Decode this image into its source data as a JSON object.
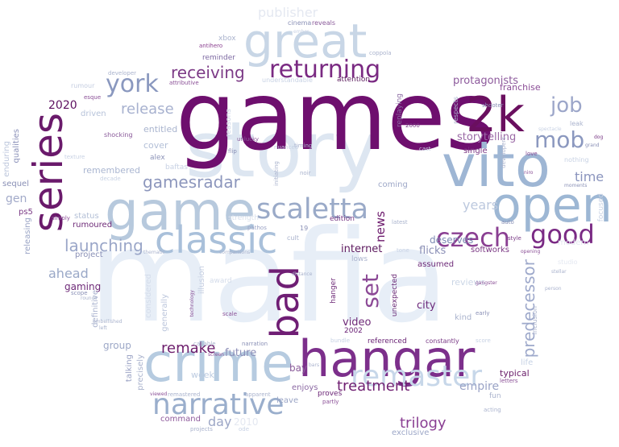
{
  "words": [
    {
      "text": "mafia",
      "color": "#e7eef7"
    },
    {
      "text": "story",
      "color": "#dde6f1"
    },
    {
      "text": "games",
      "color": "#6e0f6e"
    },
    {
      "text": "hangar",
      "color": "#7c2f8b"
    },
    {
      "text": "2k",
      "color": "#6a0f5f"
    },
    {
      "text": "vito",
      "color": "#9eb6d4"
    },
    {
      "text": "open",
      "color": "#9db7d4"
    },
    {
      "text": "game",
      "color": "#b7c9dd"
    },
    {
      "text": "great",
      "color": "#c8d6e6"
    },
    {
      "text": "classic",
      "color": "#a9c0da"
    },
    {
      "text": "crime",
      "color": "#b6cbe0"
    },
    {
      "text": "series",
      "color": "#6a1a6b"
    },
    {
      "text": "bad",
      "color": "#6f1e74"
    },
    {
      "text": "returning",
      "color": "#7a2a82"
    },
    {
      "text": "scaletta",
      "color": "#9aaac8"
    },
    {
      "text": "york",
      "color": "#8a98bf"
    },
    {
      "text": "remaster",
      "color": "#c7d7e9"
    },
    {
      "text": "narrative",
      "color": "#9aaecc"
    },
    {
      "text": "good",
      "color": "#7a2a84"
    },
    {
      "text": "czech",
      "color": "#8a3f92"
    },
    {
      "text": "mob",
      "color": "#8b98bf"
    },
    {
      "text": "job",
      "color": "#9ca6c9"
    },
    {
      "text": "set",
      "color": "#8c4996"
    },
    {
      "text": "receiving",
      "color": "#7c3a86"
    },
    {
      "text": "gamesradar",
      "color": "#8c96bc"
    },
    {
      "text": "launching",
      "color": "#9aa6c8"
    },
    {
      "text": "release",
      "color": "#a7b1cf"
    },
    {
      "text": "remake",
      "color": "#6d1d6c"
    },
    {
      "text": "treatment",
      "color": "#702072"
    },
    {
      "text": "trilogy",
      "color": "#8a3f93"
    },
    {
      "text": "predecessor",
      "color": "#9ea9cb"
    },
    {
      "text": "2020",
      "color": "#5d1060"
    },
    {
      "text": "ahead",
      "color": "#9aa8c7"
    },
    {
      "text": "time",
      "color": "#8a94bd"
    },
    {
      "text": "years",
      "color": "#bcc8de"
    },
    {
      "text": "news",
      "color": "#6d1a6d"
    },
    {
      "text": "storytelling",
      "color": "#9b6aa6"
    },
    {
      "text": "protagonists",
      "color": "#8d5a9c"
    },
    {
      "text": "publisher",
      "color": "#e4e8f1"
    },
    {
      "text": "day",
      "color": "#9ca6c6"
    },
    {
      "text": "future",
      "color": "#8d8fb8"
    },
    {
      "text": "empire",
      "color": "#9aa3c6"
    },
    {
      "text": "city",
      "color": "#6d2a7b"
    },
    {
      "text": "video",
      "color": "#6f2a78"
    },
    {
      "text": "internet",
      "color": "#5d1a5f"
    },
    {
      "text": "flicks",
      "color": "#8a8fb6"
    },
    {
      "text": "deserves",
      "color": "#7c8ab3"
    },
    {
      "text": "bay",
      "color": "#8a5b9a"
    },
    {
      "text": "gaming",
      "color": "#6e2a78"
    },
    {
      "text": "group",
      "color": "#9da8c7"
    },
    {
      "text": "gen",
      "color": "#a2aac9"
    },
    {
      "text": "week",
      "color": "#bccbe0"
    },
    {
      "text": "remembered",
      "color": "#aab6d1"
    },
    {
      "text": "franchise",
      "color": "#8a4c96"
    },
    {
      "text": "softworks",
      "color": "#7c3a85"
    },
    {
      "text": "typical",
      "color": "#6a1d6a"
    },
    {
      "text": "reviews",
      "color": "#cbd6e6"
    },
    {
      "text": "single",
      "color": "#7d3a86"
    },
    {
      "text": "command",
      "color": "#8e5a9c"
    },
    {
      "text": "enjoys",
      "color": "#8c6aa4"
    },
    {
      "text": "cover",
      "color": "#b3bfd7"
    },
    {
      "text": "entitled",
      "color": "#aab5cf"
    },
    {
      "text": "driven",
      "color": "#b7c3da"
    },
    {
      "text": "life",
      "color": "#c7d3e5"
    },
    {
      "text": "coming",
      "color": "#9ea8c8"
    },
    {
      "text": "status",
      "color": "#b3bfd6"
    },
    {
      "text": "rumoured",
      "color": "#6e2b78"
    },
    {
      "text": "ps5",
      "color": "#7a3a85"
    },
    {
      "text": "project",
      "color": "#8a90b6"
    },
    {
      "text": "definitive",
      "color": "#aab3cf"
    },
    {
      "text": "exclusive",
      "color": "#9ea8c8"
    },
    {
      "text": "leave",
      "color": "#9aa4c5"
    },
    {
      "text": "assumed",
      "color": "#6d2a78"
    },
    {
      "text": "referenced",
      "color": "#6a2475"
    },
    {
      "text": "kind",
      "color": "#aab3cd"
    },
    {
      "text": "attention",
      "color": "#5a1a5c"
    },
    {
      "text": "reminder",
      "color": "#7d6aa2"
    },
    {
      "text": "replaying",
      "color": "#8a6aa2"
    },
    {
      "text": "hanger",
      "color": "#6e2a78"
    },
    {
      "text": "unexpected",
      "color": "#6a2a76"
    },
    {
      "text": "2002",
      "color": "#6a2175"
    },
    {
      "text": "edition",
      "color": "#7a3a86"
    },
    {
      "text": "lows",
      "color": "#aab3cd"
    },
    {
      "text": "alex",
      "color": "#8c93b8"
    },
    {
      "text": "baftas",
      "color": "#c8d2e4"
    },
    {
      "text": "xbox",
      "color": "#aab3cd"
    },
    {
      "text": "qualities",
      "color": "#8a90b8"
    },
    {
      "text": "enduring",
      "color": "#bcc6dc"
    },
    {
      "text": "sequel",
      "color": "#8a90b6"
    },
    {
      "text": "releasing",
      "color": "#9aa4c5"
    },
    {
      "text": "talking",
      "color": "#9aa2c4"
    },
    {
      "text": "precisely",
      "color": "#aab3cd"
    },
    {
      "text": "proves",
      "color": "#6a2475"
    },
    {
      "text": "fun",
      "color": "#aab3cd"
    },
    {
      "text": "shocking",
      "color": "#8a5a9a"
    },
    {
      "text": "constantly",
      "color": "#7a3a86"
    },
    {
      "text": "generally",
      "color": "#bcc6dc"
    },
    {
      "text": "considered",
      "color": "#d4dcea"
    },
    {
      "text": "illusion",
      "color": "#c4cde0"
    },
    {
      "text": "reasons",
      "color": "#c8d2e4"
    },
    {
      "text": "award",
      "color": "#d4dcea"
    },
    {
      "text": "strength",
      "color": "#d8e0ec"
    },
    {
      "text": "rumour",
      "color": "#c4cde0"
    },
    {
      "text": "cinema",
      "color": "#8a90b6"
    },
    {
      "text": "reveals",
      "color": "#8a5a9a"
    },
    {
      "text": "antihero",
      "color": "#8a3f8f"
    },
    {
      "text": "coppola",
      "color": "#aab3cd"
    },
    {
      "text": "developer",
      "color": "#aab3cd"
    },
    {
      "text": "esque",
      "color": "#8a4f96"
    },
    {
      "text": "attributive",
      "color": "#8a4f96"
    },
    {
      "text": "understandable",
      "color": "#c8d2e4"
    },
    {
      "text": "flip",
      "color": "#8a90b6"
    },
    {
      "text": "unlucky",
      "color": "#8a5a9a"
    },
    {
      "text": "timing",
      "color": "#aab3cd"
    },
    {
      "text": "nuanced",
      "color": "#c8d2e4"
    },
    {
      "text": "initiating",
      "color": "#aab3cd"
    },
    {
      "text": "noir",
      "color": "#aab3cd"
    },
    {
      "text": "pathos",
      "color": "#9aa2c4"
    },
    {
      "text": "cult",
      "color": "#aab3cd"
    },
    {
      "text": "19",
      "color": "#8a90b6"
    },
    {
      "text": "latest",
      "color": "#aab3cd"
    },
    {
      "text": "tone",
      "color": "#c8d2e4"
    },
    {
      "text": "respects",
      "color": "#aab3cd"
    },
    {
      "text": "shooter",
      "color": "#8a90b6"
    },
    {
      "text": "love",
      "color": "#8a4f96"
    },
    {
      "text": "spectacle",
      "color": "#c8d2e4"
    },
    {
      "text": "grand",
      "color": "#8a90b6"
    },
    {
      "text": "dog",
      "color": "#7a3a86"
    },
    {
      "text": "leak",
      "color": "#aab3cd"
    },
    {
      "text": "auto",
      "color": "#8a90b6"
    },
    {
      "text": "style",
      "color": "#7a3a86"
    },
    {
      "text": "opening",
      "color": "#8a4f96"
    },
    {
      "text": "niro",
      "color": "#8a4f96"
    },
    {
      "text": "studio",
      "color": "#e4e8f1"
    },
    {
      "text": "stellar",
      "color": "#aab3cd"
    },
    {
      "text": "inclusion",
      "color": "#aab3cd"
    },
    {
      "text": "early",
      "color": "#8a90b6"
    },
    {
      "text": "gangster",
      "color": "#8a4f96"
    },
    {
      "text": "scale",
      "color": "#8a4f96"
    },
    {
      "text": "technology",
      "color": "#8a4f96"
    },
    {
      "text": "capable",
      "color": "#aab3cd"
    },
    {
      "text": "narration",
      "color": "#8a90b6"
    },
    {
      "text": "bundle",
      "color": "#c8d2e4"
    },
    {
      "text": "partly",
      "color": "#8a4f96"
    },
    {
      "text": "letters",
      "color": "#8a4f96"
    },
    {
      "text": "acting",
      "color": "#aab3cd"
    },
    {
      "text": "viewed",
      "color": "#8a4f96"
    },
    {
      "text": "remastered",
      "color": "#aab3cd"
    },
    {
      "text": "apparent",
      "color": "#aab3cd"
    },
    {
      "text": "projects",
      "color": "#aab3cd"
    },
    {
      "text": "ode",
      "color": "#c8d2e4"
    },
    {
      "text": "2010",
      "color": "#e4e8f1"
    },
    {
      "text": "simply",
      "color": "#8a4f96"
    },
    {
      "text": "scope",
      "color": "#8a90b6"
    },
    {
      "text": "rounds",
      "color": "#aab3cd"
    },
    {
      "text": "embellished",
      "color": "#aab3cd"
    },
    {
      "text": "thematic",
      "color": "#aab3cd"
    },
    {
      "text": "comparisons",
      "color": "#aab3cd"
    },
    {
      "text": "distance",
      "color": "#aab3cd"
    },
    {
      "text": "texture",
      "color": "#c8d2e4"
    },
    {
      "text": "decade",
      "color": "#c8d2e4"
    },
    {
      "text": "moments",
      "color": "#8a90b6"
    },
    {
      "text": "focused",
      "color": "#c8d2e4"
    },
    {
      "text": "modern",
      "color": "#e4e8f1"
    },
    {
      "text": "2000",
      "color": "#7a3a86"
    },
    {
      "text": "screen",
      "color": "#8a4f96"
    },
    {
      "text": "person",
      "color": "#aab3cd"
    },
    {
      "text": "ember",
      "color": "#c8d2e4"
    },
    {
      "text": "developers",
      "color": "#aab3cd"
    },
    {
      "text": "cast",
      "color": "#c8d2e4"
    },
    {
      "text": "nothing",
      "color": "#c8d2e4"
    },
    {
      "text": "bars",
      "color": "#aab3cd"
    },
    {
      "text": "left",
      "color": "#aab3cd"
    },
    {
      "text": "score",
      "color": "#c8d2e4"
    },
    {
      "text": "original",
      "color": "#e4e8f1"
    }
  ]
}
